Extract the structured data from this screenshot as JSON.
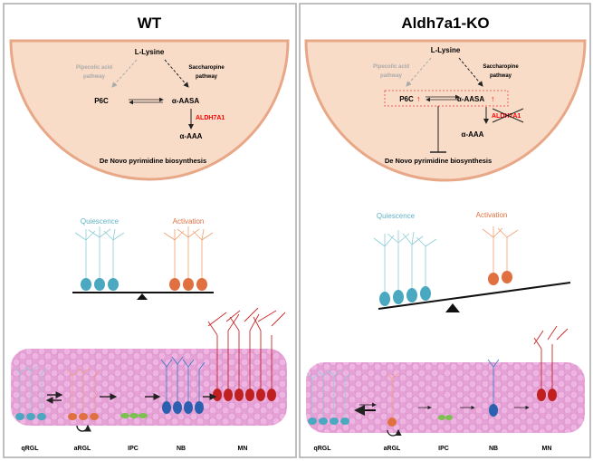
{
  "panels": [
    {
      "title": "WT",
      "lysine": "L-Lysine",
      "pipecolic": [
        "Pipecolic acid",
        "pathway"
      ],
      "saccharopine": [
        "Saccharopine",
        "pathway"
      ],
      "p6c": "P6C",
      "aasa": "α-AASA",
      "enzyme": "ALDH7A1",
      "aaa": "α-AAA",
      "pyrimidine": "De Novo pyrimidine biosynthesis",
      "quiescence": "Quiescence",
      "activation": "Activation",
      "stages": [
        "qRGL",
        "aRGL",
        "IPC",
        "NB",
        "MN"
      ]
    },
    {
      "title": "Aldh7a1-KO",
      "lysine": "L-Lysine",
      "pipecolic": [
        "Pipecolic acid",
        "pathway"
      ],
      "saccharopine": [
        "Saccharopine",
        "pathway"
      ],
      "p6c": "P6C",
      "aasa": "α-AASA",
      "up_arrow": "↑",
      "enzyme": "ALDH7A1",
      "aaa": "α-AAA",
      "pyrimidine": "De Novo pyrimidine biosynthesis",
      "quiescence": "Quiescence",
      "activation": "Activation",
      "stages": [
        "qRGL",
        "aRGL",
        "IPC",
        "NB",
        "MN"
      ]
    }
  ],
  "colors": {
    "cell_bg": "#f8dcc8",
    "cell_border": "#e8a888",
    "quiescence": "#5fb4c8",
    "activation": "#e07040",
    "enzyme": "#ff0000",
    "tissue": "#e8a0d8",
    "ipc": "#7cc050",
    "nb": "#3a78c8",
    "mn": "#c82828"
  }
}
